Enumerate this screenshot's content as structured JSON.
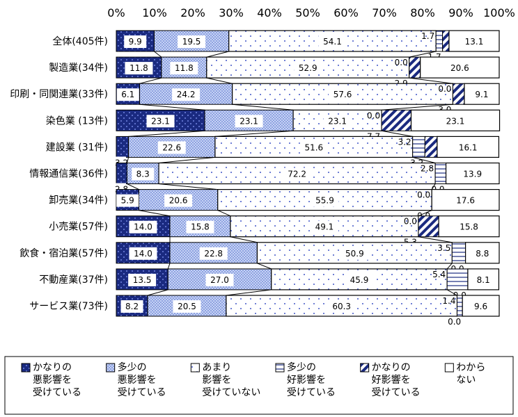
{
  "chart_data": {
    "type": "bar",
    "orientation": "horizontal",
    "stacked": true,
    "percent": true,
    "xlim": [
      0,
      100
    ],
    "x_ticks": [
      "0%",
      "10%",
      "20%",
      "30%",
      "40%",
      "50%",
      "60%",
      "70%",
      "80%",
      "90%",
      "100%"
    ],
    "title": "",
    "xlabel": "",
    "ylabel": "",
    "categories": [
      "全体(405件)",
      "製造業(34件)",
      "印刷・同関連業(33件)",
      "染色業 (13件)",
      "建設業 (31件)",
      "情報通信業(36件)",
      "卸売業(34件)",
      "小売業(57件)",
      "飲食・宿泊業(57件)",
      "不動産業(37件)",
      "サービス業(73件)"
    ],
    "series": [
      {
        "name": "かなりの悪影響を受けている",
        "legend_lines": [
          "かなりの",
          "悪影響を",
          "受けている"
        ],
        "values": [
          9.9,
          11.8,
          6.1,
          23.1,
          3.2,
          2.8,
          5.9,
          14.0,
          14.0,
          13.5,
          8.2
        ]
      },
      {
        "name": "多少の悪影響を受けている",
        "legend_lines": [
          "多少の",
          "悪影響を",
          "受けている"
        ],
        "values": [
          19.5,
          11.8,
          24.2,
          23.1,
          22.6,
          8.3,
          20.6,
          15.8,
          22.8,
          27.0,
          20.5
        ]
      },
      {
        "name": "あまり影響を受けていない",
        "legend_lines": [
          "あまり",
          "影響を",
          "受けていない"
        ],
        "values": [
          54.1,
          52.9,
          57.6,
          23.1,
          51.6,
          72.2,
          55.9,
          49.1,
          50.9,
          45.9,
          60.3
        ]
      },
      {
        "name": "多少の好影響を受けている",
        "legend_lines": [
          "多少の",
          "好影響を",
          "受けている"
        ],
        "values": [
          1.7,
          0.0,
          0.0,
          0.0,
          3.2,
          2.8,
          0.0,
          0.0,
          3.5,
          5.4,
          1.4
        ]
      },
      {
        "name": "かなりの好影響を受けている",
        "legend_lines": [
          "かなりの",
          "好影響を",
          "受けている"
        ],
        "values": [
          1.7,
          2.9,
          3.0,
          7.7,
          3.2,
          0.0,
          0.0,
          5.3,
          0.0,
          0.0,
          0.0
        ]
      },
      {
        "name": "わからない",
        "legend_lines": [
          "わから",
          "ない"
        ],
        "values": [
          13.1,
          20.6,
          9.1,
          23.1,
          16.1,
          13.9,
          17.6,
          15.8,
          8.8,
          8.1,
          9.6
        ]
      }
    ],
    "legend_position": "bottom",
    "colors": {
      "navy": "#1a2a80",
      "light_blue": "#b8c8f0",
      "white": "#ffffff",
      "dots": "#5a6ed0"
    }
  }
}
